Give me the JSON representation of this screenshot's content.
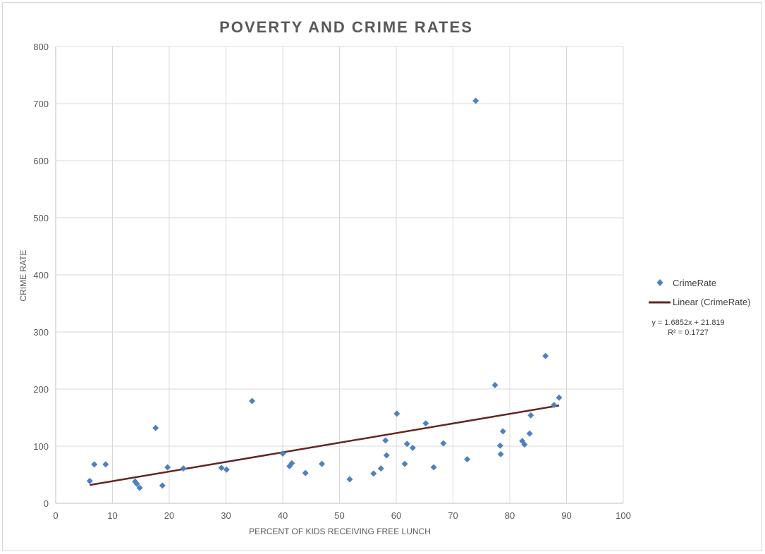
{
  "chart_data": {
    "type": "scatter",
    "title": "POVERTY AND CRIME RATES",
    "xlabel": "PERCENT OF KIDS RECEIVING FREE LUNCH",
    "ylabel": "CRIME RATE",
    "xlim": [
      0,
      100
    ],
    "ylim": [
      0,
      800
    ],
    "xticks": [
      0,
      10,
      20,
      30,
      40,
      50,
      60,
      70,
      80,
      90,
      100
    ],
    "yticks": [
      0,
      100,
      200,
      300,
      400,
      500,
      600,
      700,
      800
    ],
    "x_tick_labels": [
      "0",
      "10",
      "20",
      "30",
      "40",
      "50",
      "60",
      "70",
      "80",
      "90",
      "100"
    ],
    "y_tick_labels": [
      "0",
      "100",
      "200",
      "300",
      "400",
      "500",
      "600",
      "700",
      "800"
    ],
    "grid": true,
    "legend_position": "right",
    "series": [
      {
        "name": "CrimeRate",
        "color": "#4f81bd",
        "marker": "diamond",
        "points": [
          [
            6,
            39
          ],
          [
            6.8,
            68
          ],
          [
            8.8,
            68
          ],
          [
            14,
            38
          ],
          [
            14.3,
            34
          ],
          [
            14.8,
            27
          ],
          [
            17.6,
            132
          ],
          [
            18.8,
            31
          ],
          [
            19.7,
            63
          ],
          [
            22.5,
            61
          ],
          [
            29.2,
            62
          ],
          [
            30.1,
            59
          ],
          [
            34.6,
            179
          ],
          [
            40,
            87
          ],
          [
            41.2,
            65
          ],
          [
            41.6,
            70
          ],
          [
            44,
            53
          ],
          [
            46.9,
            69
          ],
          [
            51.8,
            42
          ],
          [
            56,
            52
          ],
          [
            57.3,
            61
          ],
          [
            58.1,
            110
          ],
          [
            58.3,
            84
          ],
          [
            60.1,
            157
          ],
          [
            61.5,
            69
          ],
          [
            61.9,
            104
          ],
          [
            62.9,
            97
          ],
          [
            65.2,
            140
          ],
          [
            66.6,
            63
          ],
          [
            68.3,
            105
          ],
          [
            72.5,
            77
          ],
          [
            74,
            705
          ],
          [
            77.4,
            207
          ],
          [
            78.3,
            101
          ],
          [
            78.4,
            86
          ],
          [
            78.8,
            126
          ],
          [
            82.2,
            109
          ],
          [
            82.6,
            103
          ],
          [
            83.5,
            122
          ],
          [
            83.7,
            154
          ],
          [
            86.3,
            258
          ],
          [
            87.8,
            172
          ],
          [
            88.7,
            185
          ]
        ]
      },
      {
        "name": "Linear (CrimeRate)",
        "color": "#632523",
        "type": "trendline",
        "slope": 1.6852,
        "intercept": 21.819,
        "x_range": [
          6,
          88.7
        ]
      }
    ],
    "trendline_equation": "y = 1.6852x + 21.819",
    "trendline_r2": "R² = 0.1727"
  }
}
